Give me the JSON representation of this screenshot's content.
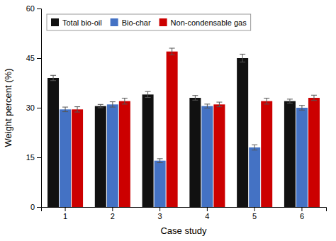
{
  "chart_data": {
    "type": "bar",
    "categories": [
      "1",
      "2",
      "3",
      "4",
      "5",
      "6"
    ],
    "series": [
      {
        "name": "Total bio-oil",
        "color": "#111111",
        "values": [
          39.0,
          30.5,
          34.0,
          33.0,
          45.0,
          32.0
        ],
        "errors": [
          0.8,
          0.5,
          0.9,
          0.7,
          1.2,
          0.6
        ]
      },
      {
        "name": "Bio-char",
        "color": "#4472c4",
        "values": [
          29.5,
          31.0,
          14.0,
          30.5,
          18.0,
          30.0
        ],
        "errors": [
          0.7,
          0.8,
          0.6,
          0.6,
          0.8,
          0.7
        ]
      },
      {
        "name": "Non-condensable gas",
        "color": "#cc0000",
        "values": [
          29.5,
          32.0,
          47.0,
          31.0,
          32.0,
          33.0
        ],
        "errors": [
          0.8,
          0.9,
          1.0,
          0.7,
          0.9,
          0.8
        ]
      }
    ],
    "xlabel": "Case study",
    "ylabel": "Weight percent (%)",
    "ylim": [
      0,
      60
    ],
    "yticks": [
      0,
      15,
      30,
      45,
      60
    ],
    "legend": "upper left",
    "grid": false
  }
}
